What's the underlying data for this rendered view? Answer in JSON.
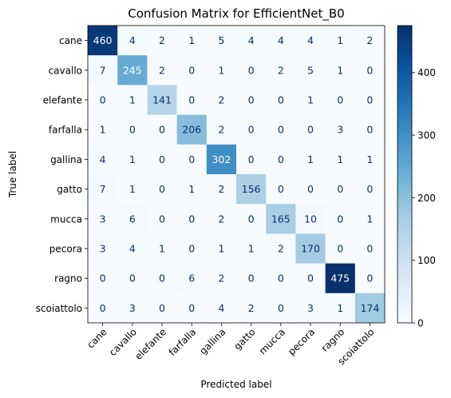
{
  "chart_data": {
    "type": "heatmap",
    "title": "Confusion Matrix for EfficientNet_B0",
    "xlabel": "Predicted label",
    "ylabel": "True label",
    "row_labels": [
      "cane",
      "cavallo",
      "elefante",
      "farfalla",
      "gallina",
      "gatto",
      "mucca",
      "pecora",
      "ragno",
      "scoiattolo"
    ],
    "col_labels": [
      "cane",
      "cavallo",
      "elefante",
      "farfalla",
      "gallina",
      "gatto",
      "mucca",
      "pecora",
      "ragno",
      "scoiattolo"
    ],
    "values": [
      [
        460,
        4,
        2,
        1,
        5,
        4,
        4,
        4,
        1,
        2
      ],
      [
        7,
        245,
        2,
        0,
        1,
        0,
        2,
        5,
        1,
        0
      ],
      [
        0,
        1,
        141,
        0,
        2,
        0,
        0,
        1,
        0,
        0
      ],
      [
        1,
        0,
        0,
        206,
        2,
        0,
        0,
        0,
        3,
        0
      ],
      [
        4,
        1,
        0,
        0,
        302,
        0,
        0,
        1,
        1,
        1
      ],
      [
        7,
        1,
        0,
        1,
        2,
        156,
        0,
        0,
        0,
        0
      ],
      [
        3,
        6,
        0,
        0,
        2,
        0,
        165,
        10,
        0,
        1
      ],
      [
        3,
        4,
        1,
        0,
        1,
        1,
        2,
        170,
        0,
        0
      ],
      [
        0,
        0,
        0,
        6,
        2,
        0,
        0,
        0,
        475,
        0
      ],
      [
        0,
        3,
        0,
        0,
        4,
        2,
        0,
        3,
        1,
        174
      ]
    ],
    "colormap": "Blues",
    "colorbar": {
      "min": 0,
      "max": 475,
      "ticks": [
        0,
        100,
        200,
        300,
        400
      ]
    }
  }
}
